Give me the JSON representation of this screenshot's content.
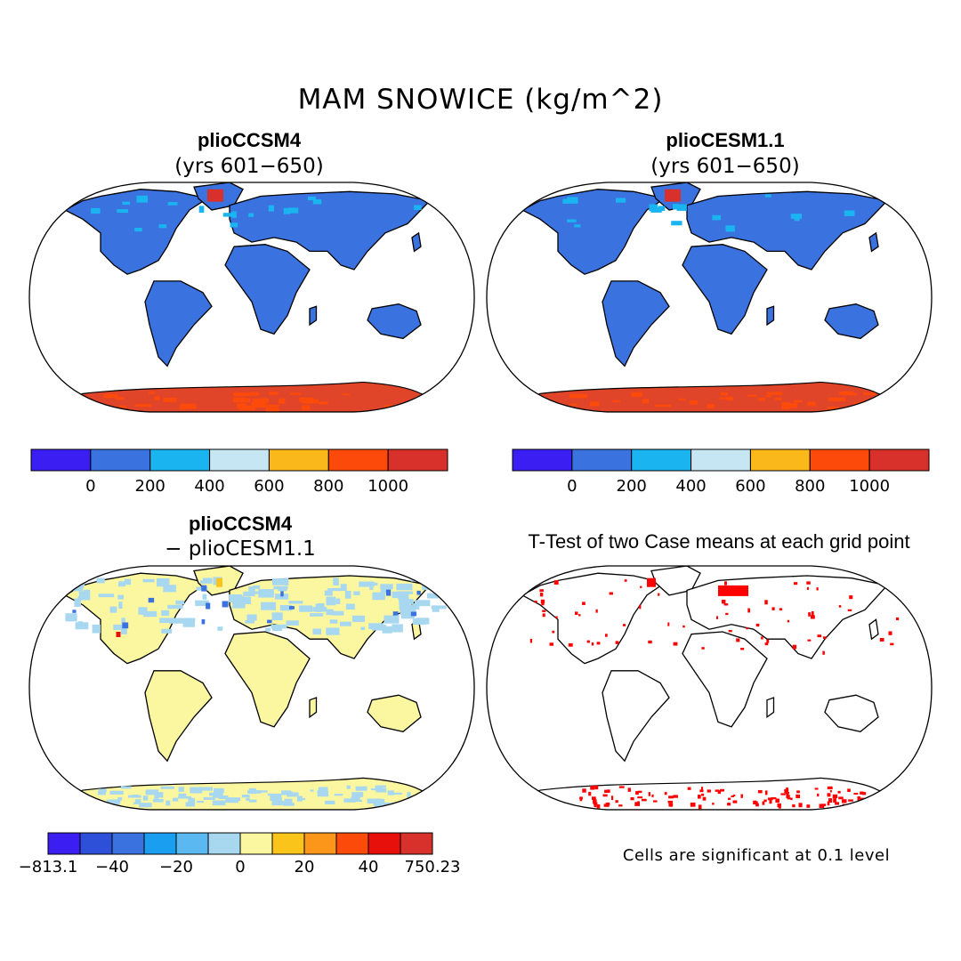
{
  "figure": {
    "title": "MAM SNOWICE (kg/m^2)"
  },
  "panels": [
    {
      "id": "pliocsm4",
      "title": "plioCCSM4",
      "subtitle": "(yrs 601−650)",
      "colorbar": {
        "colors": [
          "#3a1ef2",
          "#3a73e0",
          "#1ab4f0",
          "#c6e6f4",
          "#fbb81a",
          "#fb4a0a",
          "#d8302a"
        ],
        "labels": [
          "0",
          "200",
          "400",
          "600",
          "800",
          "1000"
        ]
      }
    },
    {
      "id": "plioCESM",
      "title": "plioCESM1.1",
      "subtitle": "(yrs 601−650)",
      "colorbar": {
        "colors": [
          "#3a1ef2",
          "#3a73e0",
          "#1ab4f0",
          "#c6e6f4",
          "#fbb81a",
          "#fb4a0a",
          "#d8302a"
        ],
        "labels": [
          "0",
          "200",
          "400",
          "600",
          "800",
          "1000"
        ]
      }
    },
    {
      "id": "diff",
      "title": "plioCCSM4",
      "subtitle": "− plioCESM1.1",
      "colorbar": {
        "colors": [
          "#3a1ef2",
          "#2e4fd8",
          "#3a73e0",
          "#1a9ef0",
          "#5cb8f0",
          "#a8d8f0",
          "#fbf6a0",
          "#fbc41a",
          "#fb961a",
          "#fb4a0a",
          "#e8100a",
          "#d8302a"
        ],
        "labels": [
          "−813.1",
          "−40",
          "−20",
          "0",
          "20",
          "40",
          "750.23"
        ]
      }
    },
    {
      "id": "ttest",
      "title": "T-Test of two Case means at each grid point",
      "note": "Cells are significant at 0.1 level",
      "significance_color": "#ff0000"
    }
  ]
}
